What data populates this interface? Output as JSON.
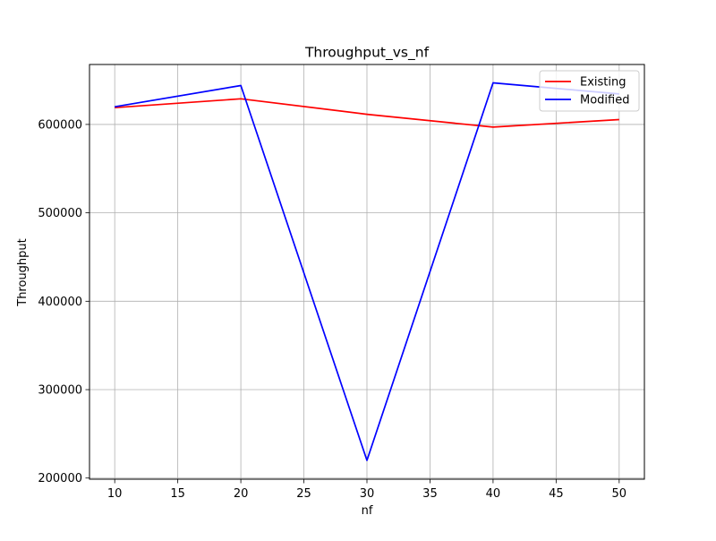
{
  "chart_data": {
    "type": "line",
    "title": "Throughput_vs_nf",
    "xlabel": "nf",
    "ylabel": "Throughput",
    "x": [
      10,
      20,
      30,
      40,
      50
    ],
    "xticks": [
      10,
      15,
      20,
      25,
      30,
      35,
      40,
      45,
      50
    ],
    "xtick_labels": [
      "10",
      "15",
      "20",
      "25",
      "30",
      "35",
      "40",
      "45",
      "50"
    ],
    "yticks": [
      200000,
      300000,
      400000,
      500000,
      600000
    ],
    "ytick_labels": [
      "200000",
      "300000",
      "400000",
      "500000",
      "600000"
    ],
    "xlim": [
      8.0,
      52.0
    ],
    "ylim": [
      198700,
      667800
    ],
    "grid": true,
    "legend_position": "top-right",
    "series": [
      {
        "name": "Existing",
        "color": "#ff0000",
        "values": [
          619000,
          629000,
          611500,
          597000,
          605500
        ]
      },
      {
        "name": "Modified",
        "color": "#0000ff",
        "values": [
          620000,
          644000,
          220000,
          647000,
          634500
        ]
      }
    ]
  }
}
